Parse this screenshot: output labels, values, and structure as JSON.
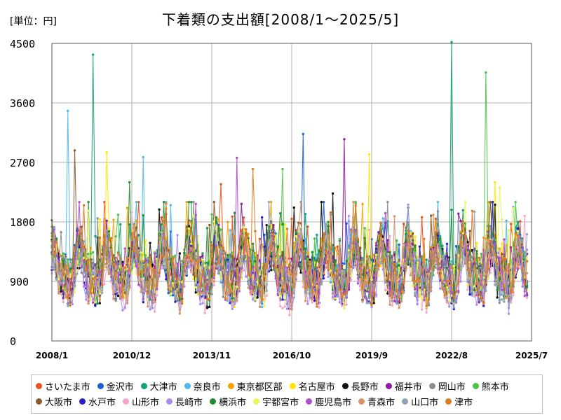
{
  "unit_label": "[単位：円]",
  "chart_data": {
    "type": "line",
    "title": "下着類の支出額[2008/1～2025/5]",
    "xlabel": "",
    "ylabel": "",
    "ylim": [
      0,
      4500
    ],
    "yticks": [
      0,
      900,
      1800,
      2700,
      3600,
      4500
    ],
    "xlim": [
      "2008/1",
      "2025/7"
    ],
    "xticks": [
      "2008/1",
      "2010/12",
      "2013/11",
      "2016/10",
      "2019/9",
      "2022/8",
      "2025/7"
    ],
    "grid": true,
    "legend_position": "bottom",
    "series": [
      {
        "name": "さいたま市",
        "color": "#e8541e",
        "typical": 1150,
        "peaks": [
          {
            "month": 209,
            "value": 2180
          },
          {
            "month": 74,
            "value": 2370
          }
        ]
      },
      {
        "name": "金沢市",
        "color": "#1a5fd6",
        "typical": 1100,
        "peaks": [
          {
            "month": 110,
            "value": 3130
          }
        ]
      },
      {
        "name": "大津市",
        "color": "#14a07a",
        "typical": 1150,
        "peaks": [
          {
            "month": 18,
            "value": 4330
          },
          {
            "month": 175,
            "value": 4520
          }
        ]
      },
      {
        "name": "奈良市",
        "color": "#4fb9ec",
        "typical": 1100,
        "peaks": [
          {
            "month": 40,
            "value": 2780
          },
          {
            "month": 7,
            "value": 3480
          }
        ]
      },
      {
        "name": "東京都区部",
        "color": "#f2a400",
        "typical": 1200,
        "peaks": []
      },
      {
        "name": "名古屋市",
        "color": "#ffe800",
        "typical": 1100,
        "peaks": [
          {
            "month": 24,
            "value": 2850
          },
          {
            "month": 139,
            "value": 2820
          },
          {
            "month": 194,
            "value": 2400
          }
        ]
      },
      {
        "name": "長野市",
        "color": "#111111",
        "typical": 1050,
        "peaks": [
          {
            "month": 123,
            "value": 2230
          }
        ]
      },
      {
        "name": "福井市",
        "color": "#8e1c9e",
        "typical": 1100,
        "peaks": [
          {
            "month": 128,
            "value": 3050
          }
        ]
      },
      {
        "name": "岡山市",
        "color": "#8c8c8c",
        "typical": 1050,
        "peaks": []
      },
      {
        "name": "熊本市",
        "color": "#4cc24c",
        "typical": 1100,
        "peaks": [
          {
            "month": 190,
            "value": 4060
          },
          {
            "month": 101,
            "value": 2600
          }
        ]
      },
      {
        "name": "大阪市",
        "color": "#8b5a2b",
        "typical": 1150,
        "peaks": [
          {
            "month": 10,
            "value": 2880
          }
        ]
      },
      {
        "name": "水戸市",
        "color": "#2a1fc4",
        "typical": 1050,
        "peaks": []
      },
      {
        "name": "山形市",
        "color": "#f7a6c8",
        "typical": 950,
        "peaks": []
      },
      {
        "name": "長崎市",
        "color": "#a98cf0",
        "typical": 1000,
        "peaks": []
      },
      {
        "name": "横浜市",
        "color": "#1f8f2f",
        "typical": 1150,
        "peaks": [
          {
            "month": 34,
            "value": 2400
          }
        ]
      },
      {
        "name": "宇都宮市",
        "color": "#eaf55a",
        "typical": 1050,
        "peaks": [
          {
            "month": 196,
            "value": 2320
          }
        ]
      },
      {
        "name": "鹿児島市",
        "color": "#b04fd0",
        "typical": 1050,
        "peaks": [
          {
            "month": 81,
            "value": 2770
          }
        ]
      },
      {
        "name": "青森市",
        "color": "#d99466",
        "typical": 1000,
        "peaks": []
      },
      {
        "name": "山口市",
        "color": "#8fa3b8",
        "typical": 1050,
        "peaks": []
      },
      {
        "name": "津市",
        "color": "#e07a1c",
        "typical": 1100,
        "peaks": [
          {
            "month": 88,
            "value": 2600
          }
        ]
      }
    ]
  }
}
